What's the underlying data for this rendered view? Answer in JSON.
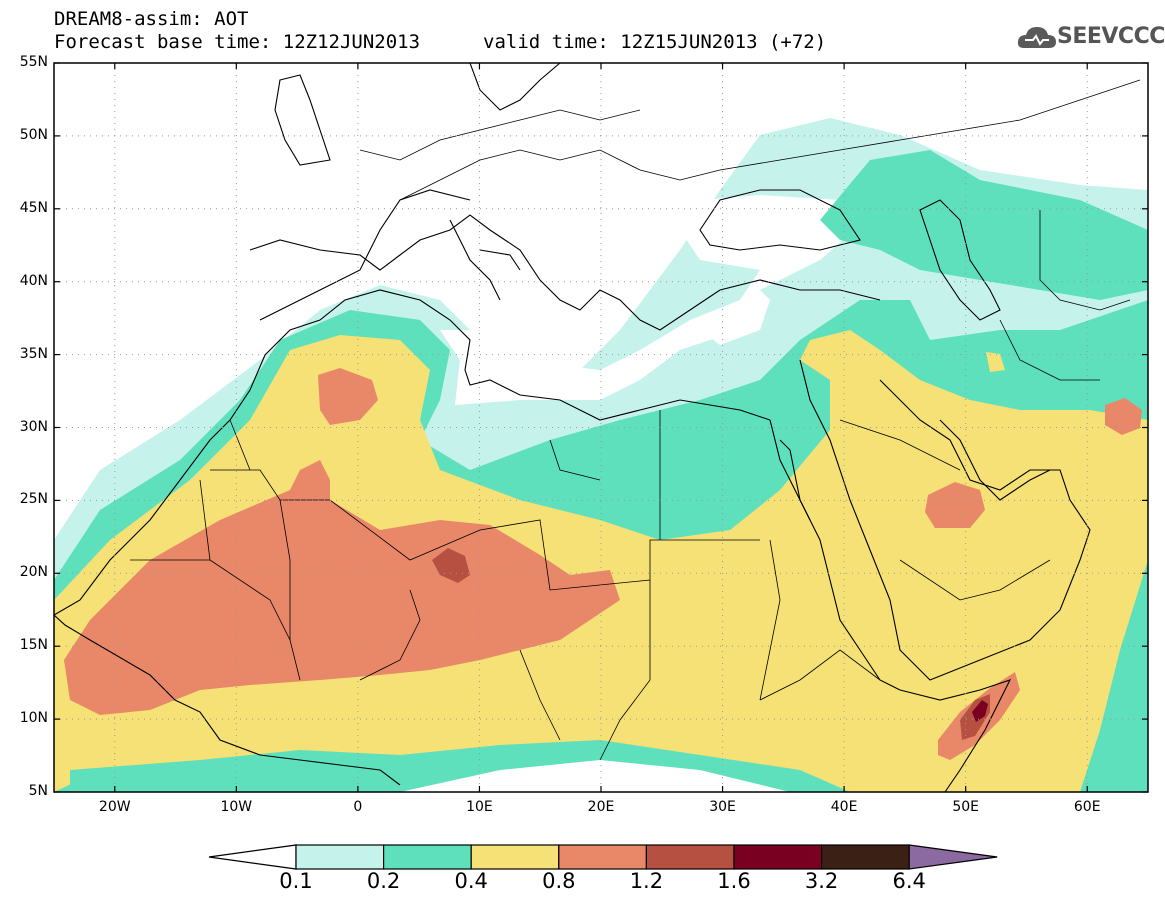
{
  "header": {
    "line1": "DREAM8-assim: AOT",
    "line2_base": "Forecast base time: 12Z12JUN2013",
    "line2_valid": "valid time: 12Z15JUN2013 (+72)",
    "logo_text": "SEEVCCC"
  },
  "map": {
    "lon_range": [
      -25,
      65
    ],
    "lat_range": [
      5,
      55
    ],
    "lat_labels": [
      "55N",
      "50N",
      "45N",
      "40N",
      "35N",
      "30N",
      "25N",
      "20N",
      "15N",
      "10N",
      "5N"
    ],
    "lon_labels": [
      "20W",
      "10W",
      "0",
      "10E",
      "20E",
      "30E",
      "40E",
      "50E",
      "60E"
    ],
    "gridlines": "dotted"
  },
  "colorbar": {
    "levels": [
      "0.1",
      "0.2",
      "0.4",
      "0.8",
      "1.2",
      "1.6",
      "3.2",
      "6.4"
    ],
    "colors": [
      "#c6f2ec",
      "#5fe0bc",
      "#f5e175",
      "#e88868",
      "#b65040",
      "#7a0022",
      "#3a2015",
      "#8a6aa0"
    ]
  }
}
